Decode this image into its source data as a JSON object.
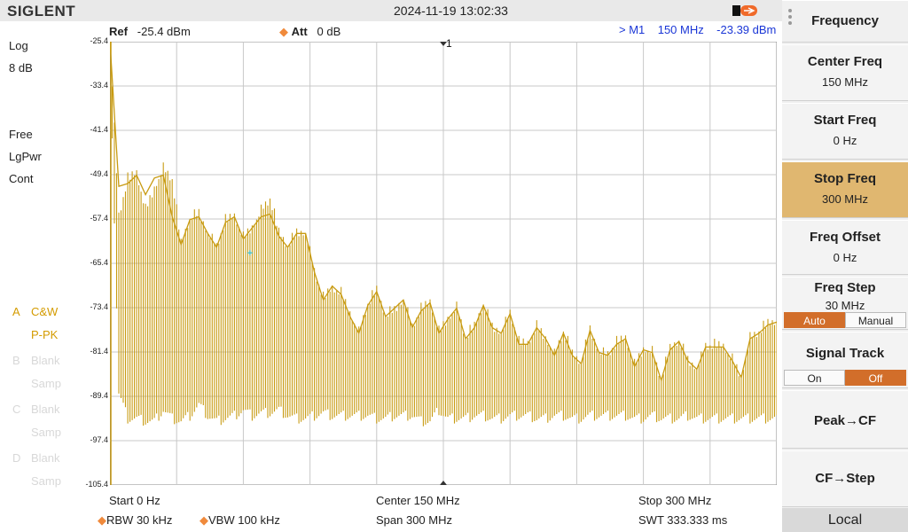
{
  "header": {
    "logo": "SIGLENT",
    "datetime": "2024-11-19 13:02:33",
    "ref_label": "Ref",
    "ref_value": "-25.4 dBm",
    "att_label": "Att",
    "att_value": "0 dB",
    "marker_readout": "> M1    150 MHz    -23.39 dBm"
  },
  "left_panel": {
    "scale_type": "Log",
    "scale_div": "8 dB",
    "trig": "Free",
    "detector": "LgPwr",
    "sweep": "Cont",
    "traces": [
      {
        "letter": "A",
        "mode": "C&W",
        "det": "P-PK",
        "active": true
      },
      {
        "letter": "B",
        "mode": "Blank",
        "det": "Samp",
        "active": false
      },
      {
        "letter": "C",
        "mode": "Blank",
        "det": "Samp",
        "active": false
      },
      {
        "letter": "D",
        "mode": "Blank",
        "det": "Samp",
        "active": false
      }
    ]
  },
  "y_axis": {
    "labels": [
      "-25.4",
      "-33.4",
      "-41.4",
      "-49.4",
      "-57.4",
      "-65.4",
      "-73.4",
      "-81.4",
      "-89.4",
      "-97.4",
      "-105.4"
    ]
  },
  "marker": {
    "label": "1"
  },
  "footer": {
    "start": "Start  0 Hz",
    "center": "Center  150 MHz",
    "stop": "Stop  300 MHz",
    "rbw": "RBW  30 kHz",
    "vbw": "VBW  100 kHz",
    "span": "Span  300 MHz",
    "swt": "SWT  333.333 ms"
  },
  "softkeys": {
    "menu_title": "Frequency",
    "center_freq": {
      "label": "Center Freq",
      "value": "150 MHz"
    },
    "start_freq": {
      "label": "Start Freq",
      "value": "0 Hz"
    },
    "stop_freq": {
      "label": "Stop Freq",
      "value": "300 MHz"
    },
    "freq_offset": {
      "label": "Freq Offset",
      "value": "0 Hz"
    },
    "freq_step": {
      "label": "Freq Step",
      "value": "30 MHz",
      "opt_a": "Auto",
      "opt_b": "Manual",
      "selected": "Auto"
    },
    "signal_track": {
      "label": "Signal Track",
      "opt_a": "On",
      "opt_b": "Off",
      "selected": "Off"
    },
    "peak_cf": "Peak→CF",
    "cf_step": "CF→Step",
    "local": "Local"
  },
  "colors": {
    "trace": "#c89b12",
    "grid": "#c8c8c8",
    "active_key": "#e0b770",
    "toggle_on": "#d26e2a",
    "marker_text": "#1a36d6"
  },
  "chart_data": {
    "type": "line",
    "title": "",
    "xlabel": "",
    "ylabel": "",
    "xlim": [
      0,
      300
    ],
    "ylim": [
      -105.4,
      -25.4
    ],
    "x_unit": "MHz",
    "y_unit": "dBm",
    "series": [
      {
        "x": [
          0,
          4,
          8,
          12,
          16,
          20,
          24,
          28,
          32,
          36,
          40,
          44,
          48,
          52,
          56,
          60,
          64,
          68,
          72,
          76,
          80,
          84,
          88,
          92,
          96,
          100,
          104,
          108,
          112,
          116,
          120,
          124,
          128,
          132,
          136,
          140,
          144,
          148,
          152,
          156,
          160,
          164,
          168,
          172,
          176,
          180,
          184,
          188,
          192,
          196,
          200,
          204,
          208,
          212,
          216,
          220,
          224,
          228,
          232,
          236,
          240,
          244,
          248,
          252,
          256,
          260,
          264,
          268,
          272,
          276,
          280,
          284,
          288,
          292,
          296,
          300
        ],
        "peak": [
          -25.4,
          -57.0,
          -50.5,
          -49.2,
          -56.0,
          -52.0,
          -48.4,
          -50.5,
          -62.0,
          -57.5,
          -56.5,
          -60.0,
          -62.5,
          -58.0,
          -57.0,
          -61.0,
          -59.0,
          -56.0,
          -54.0,
          -60.0,
          -62.5,
          -60.0,
          -60.0,
          -67.0,
          -72.0,
          -70.0,
          -71.0,
          -74.5,
          -78.0,
          -73.0,
          -70.5,
          -75.0,
          -74.0,
          -72.0,
          -77.0,
          -74.0,
          -72.5,
          -78.0,
          -75.5,
          -73.5,
          -79.0,
          -77.0,
          -73.0,
          -77.0,
          -78.0,
          -74.5,
          -80.0,
          -80.0,
          -77.0,
          -79.0,
          -82.0,
          -78.0,
          -82.0,
          -83.5,
          -77.5,
          -81.5,
          -82.0,
          -80.0,
          -79.0,
          -84.0,
          -81.0,
          -81.5,
          -86.5,
          -81.0,
          -79.5,
          -83.0,
          -84.5,
          -80.5,
          -80.5,
          -80.5,
          -83.0,
          -86.0,
          -79.0,
          -78.0,
          -76.5,
          -76.0
        ],
        "floor": [
          -25.4,
          -88.0,
          -92.5,
          -92.5,
          -93.0,
          -93.0,
          -91.0,
          -92.5,
          -93.0,
          -92.0,
          -90.0,
          -92.0,
          -93.0,
          -92.5,
          -92.0,
          -91.0,
          -92.0,
          -91.5,
          -91.5,
          -91.0,
          -92.0,
          -92.5,
          -92.5,
          -92.0,
          -91.5,
          -92.0,
          -92.0,
          -92.0,
          -92.0,
          -92.0,
          -92.5,
          -92.5,
          -92.0,
          -92.0,
          -92.0,
          -93.0,
          -93.0,
          -91.0,
          -92.5,
          -92.5,
          -92.5,
          -92.0,
          -92.0,
          -92.5,
          -92.5,
          -92.0,
          -92.0,
          -92.0,
          -92.5,
          -92.5,
          -92.0,
          -92.0,
          -92.5,
          -92.5,
          -92.0,
          -92.0,
          -92.0,
          -92.0,
          -92.0,
          -92.5,
          -92.5,
          -92.0,
          -92.5,
          -92.5,
          -92.5,
          -92.0,
          -92.5,
          -92.5,
          -92.5,
          -92.5,
          -92.5,
          -92.5,
          -92.5,
          -92.5,
          -92.5,
          -92.5
        ],
        "envelope_max": [
          -25.4,
          -51.5,
          -51.0,
          -49.5,
          -53.0,
          -50.0,
          -49.5,
          -57.0,
          -62.0,
          -57.5,
          -57.0,
          -60.0,
          -62.5,
          -58.0,
          -57.0,
          -61.0,
          -59.0,
          -57.0,
          -56.5,
          -60.5,
          -62.5,
          -60.0,
          -60.0,
          -67.0,
          -72.0,
          -69.5,
          -71.0,
          -75.0,
          -78.0,
          -73.0,
          -70.5,
          -75.0,
          -73.5,
          -72.0,
          -77.0,
          -74.0,
          -72.5,
          -78.0,
          -75.5,
          -73.5,
          -79.0,
          -77.0,
          -73.0,
          -77.0,
          -78.0,
          -74.5,
          -80.0,
          -80.0,
          -77.0,
          -79.0,
          -82.0,
          -78.0,
          -82.0,
          -83.5,
          -77.5,
          -81.5,
          -82.0,
          -80.0,
          -79.0,
          -84.0,
          -81.0,
          -81.5,
          -86.5,
          -81.0,
          -79.5,
          -83.0,
          -84.5,
          -80.5,
          -80.5,
          -80.5,
          -83.0,
          -86.0,
          -79.0,
          -78.0,
          -76.5,
          -76.0
        ]
      }
    ],
    "marker": {
      "name": "M1",
      "x": 150,
      "y": -23.39
    }
  }
}
